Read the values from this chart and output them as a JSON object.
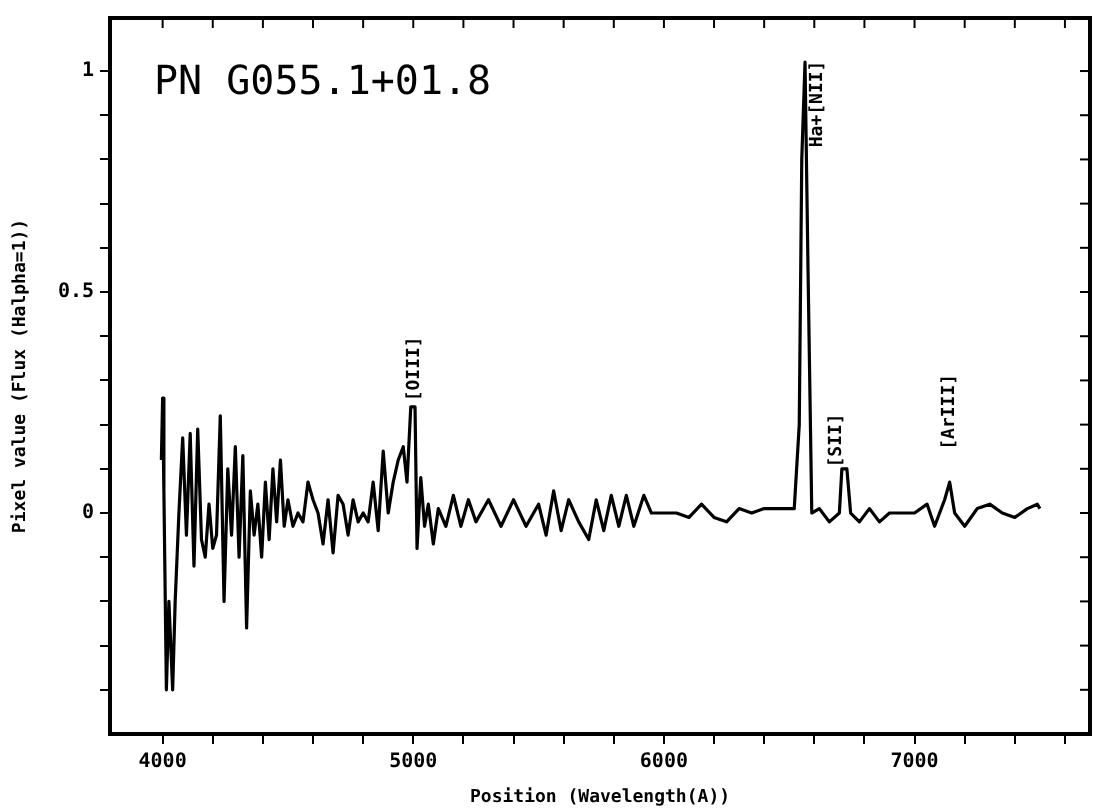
{
  "chart_data": {
    "type": "line",
    "title": "PN G055.1+01.8",
    "xlabel": "Position (Wavelength(A))",
    "ylabel": "Pixel value (Flux (Halpha=1))",
    "xlim": [
      3790,
      7700
    ],
    "xticks": [
      4000,
      {
        "value": 4200,
        "label": null
      },
      {
        "value": 4400,
        "label": null
      },
      {
        "value": 4600,
        "label": null
      },
      {
        "value": 4800,
        "label": null
      },
      5000,
      {
        "value": 5200,
        "label": null
      },
      {
        "value": 5400,
        "label": null
      },
      {
        "value": 5600,
        "label": null
      },
      {
        "value": 5800,
        "label": null
      },
      6000,
      {
        "value": 6200,
        "label": null
      },
      {
        "value": 6400,
        "label": null
      },
      {
        "value": 6600,
        "label": null
      },
      {
        "value": 6800,
        "label": null
      },
      7000,
      {
        "value": 7200,
        "label": null
      },
      {
        "value": 7400,
        "label": null
      },
      {
        "value": 7600,
        "label": null
      }
    ],
    "ylim": [
      -0.5,
      1.12
    ],
    "yticks": [
      {
        "value": -0.4,
        "label": null
      },
      {
        "value": -0.3,
        "label": null
      },
      {
        "value": -0.2,
        "label": null
      },
      {
        "value": -0.1,
        "label": null
      },
      0,
      {
        "value": 0.1,
        "label": null
      },
      {
        "value": 0.2,
        "label": null
      },
      {
        "value": 0.3,
        "label": null
      },
      {
        "value": 0.4,
        "label": null
      },
      0.5,
      {
        "value": 0.6,
        "label": null
      },
      {
        "value": 0.7,
        "label": null
      },
      {
        "value": 0.8,
        "label": null
      },
      {
        "value": 0.9,
        "label": null
      },
      1
    ],
    "grid": false,
    "legend": false,
    "marker": "none",
    "line_style": "solid",
    "annotations": [
      "[OIII]",
      "Ha+[NII]",
      "[SII]",
      "[ArIII]"
    ],
    "series": [
      {
        "color": "#000000",
        "x": [
          3995,
          4000,
          4005,
          4015,
          4025,
          4040,
          4050,
          4065,
          4080,
          4095,
          4110,
          4125,
          4140,
          4155,
          4170,
          4185,
          4200,
          4215,
          4230,
          4245,
          4260,
          4275,
          4290,
          4305,
          4320,
          4335,
          4350,
          4365,
          4380,
          4395,
          4410,
          4425,
          4440,
          4455,
          4470,
          4485,
          4500,
          4520,
          4540,
          4560,
          4580,
          4600,
          4620,
          4640,
          4660,
          4680,
          4700,
          4720,
          4740,
          4760,
          4780,
          4800,
          4820,
          4840,
          4860,
          4880,
          4900,
          4920,
          4940,
          4960,
          4975,
          4990,
          5007,
          5015,
          5030,
          5045,
          5060,
          5080,
          5100,
          5130,
          5160,
          5190,
          5220,
          5250,
          5300,
          5350,
          5400,
          5450,
          5500,
          5530,
          5560,
          5590,
          5620,
          5660,
          5700,
          5730,
          5760,
          5790,
          5820,
          5850,
          5880,
          5920,
          5950,
          6000,
          6050,
          6100,
          6150,
          6200,
          6250,
          6300,
          6350,
          6400,
          6450,
          6520,
          6540,
          6550,
          6563,
          6575,
          6590,
          6620,
          6660,
          6700,
          6710,
          6730,
          6745,
          6780,
          6820,
          6860,
          6900,
          6950,
          7000,
          7050,
          7080,
          7120,
          7140,
          7160,
          7200,
          7250,
          7300,
          7350,
          7400,
          7450,
          7490,
          7500
        ],
        "values": [
          0.12,
          0.26,
          0.05,
          -0.4,
          -0.2,
          -0.4,
          -0.2,
          0.0,
          0.17,
          -0.05,
          0.18,
          -0.12,
          0.19,
          -0.06,
          -0.1,
          0.02,
          -0.08,
          -0.05,
          0.22,
          -0.2,
          0.1,
          -0.05,
          0.15,
          -0.1,
          0.13,
          -0.26,
          0.05,
          -0.05,
          0.02,
          -0.1,
          0.07,
          -0.06,
          0.1,
          -0.02,
          0.12,
          -0.03,
          0.03,
          -0.03,
          0.0,
          -0.02,
          0.07,
          0.03,
          0.0,
          -0.07,
          0.03,
          -0.09,
          0.04,
          0.02,
          -0.05,
          0.03,
          -0.02,
          0.0,
          -0.02,
          0.07,
          -0.04,
          0.14,
          0.0,
          0.07,
          0.12,
          0.15,
          0.07,
          0.24,
          0.24,
          -0.08,
          0.08,
          -0.03,
          0.02,
          -0.07,
          0.01,
          -0.03,
          0.04,
          -0.03,
          0.03,
          -0.02,
          0.03,
          -0.03,
          0.03,
          -0.03,
          0.02,
          -0.05,
          0.05,
          -0.04,
          0.03,
          -0.02,
          -0.06,
          0.03,
          -0.04,
          0.04,
          -0.03,
          0.04,
          -0.03,
          0.04,
          0.0,
          0.0,
          0.0,
          -0.01,
          0.02,
          -0.01,
          -0.02,
          0.01,
          0.0,
          0.01,
          0.01,
          0.01,
          0.2,
          0.8,
          1.02,
          0.55,
          0.0,
          0.01,
          -0.02,
          0.0,
          0.1,
          0.1,
          0.0,
          -0.02,
          0.01,
          -0.02,
          0.0,
          0.0,
          0.0,
          0.02,
          -0.03,
          0.03,
          0.07,
          0.0,
          -0.03,
          0.01,
          0.02,
          0.0,
          -0.01,
          0.01,
          0.02,
          0.01
        ]
      }
    ]
  }
}
